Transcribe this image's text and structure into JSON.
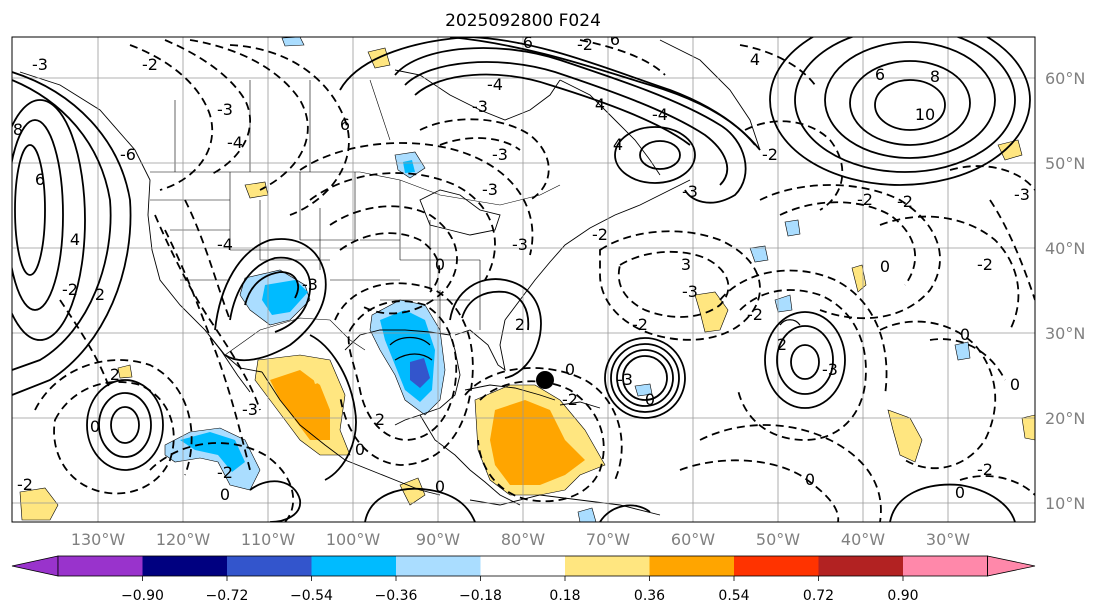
{
  "title": "2025092800 F024",
  "lon_labels": [
    "130°W",
    "120°W",
    "110°W",
    "100°W",
    "90°W",
    "80°W",
    "70°W",
    "60°W",
    "50°W",
    "40°W",
    "30°W"
  ],
  "lat_labels": [
    "60°N",
    "50°N",
    "40°N",
    "30°N",
    "20°N",
    "10°N"
  ],
  "contour_labels": [
    "-3",
    "-2",
    "-3",
    "-4",
    "6",
    "-6",
    "-4",
    "-3",
    "-2",
    "-3",
    "4",
    "6",
    "-3",
    "-4",
    "4",
    "6",
    "8",
    "10",
    "8",
    "-6",
    "6",
    "4",
    "-2",
    "-4",
    "-3",
    "4",
    "-2",
    "-3",
    "-2",
    "-3",
    "-3",
    "-2",
    "0",
    "2",
    "2",
    "0",
    "-2",
    "-3",
    "3",
    "-3",
    "-2",
    "-2",
    "2",
    "0",
    "-2",
    "2",
    "0",
    "-2",
    "-3",
    "0",
    "-3",
    "0",
    "-2",
    "0",
    "-2",
    "0",
    "0",
    "0",
    "2",
    "-2",
    "0",
    "0"
  ],
  "colorbar": {
    "tick_labels": [
      "−0.90",
      "−0.72",
      "−0.54",
      "−0.36",
      "−0.18",
      "0.18",
      "0.36",
      "0.54",
      "0.72",
      "0.90"
    ],
    "colors": [
      "#9933cc",
      "#000080",
      "#3355cc",
      "#00bbff",
      "#aaddff",
      "#ffffff",
      "#ffe680",
      "#ffa500",
      "#ff3300",
      "#b22222",
      "#ff88aa"
    ]
  },
  "fill_colors": {
    "lightblue": "#aaddff",
    "blue": "#00bbff",
    "midblue": "#3355cc",
    "yellow": "#ffe680",
    "orange": "#ffa500"
  }
}
